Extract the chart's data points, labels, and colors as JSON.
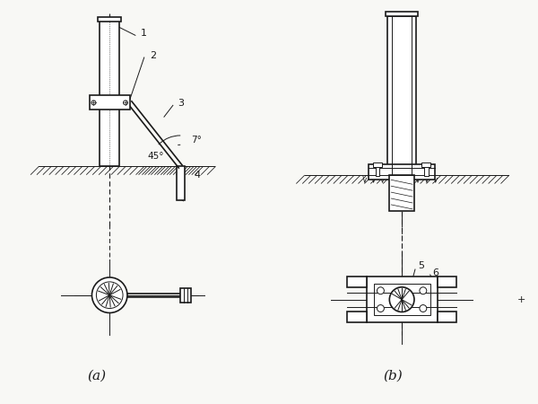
{
  "bg_color": "#f8f8f5",
  "line_color": "#1a1a1a",
  "label_a": "(a)",
  "label_b": "(b)",
  "angle_45": "45°",
  "angle_7": "7°",
  "figsize": [
    6.0,
    4.5
  ],
  "dpi": 100
}
